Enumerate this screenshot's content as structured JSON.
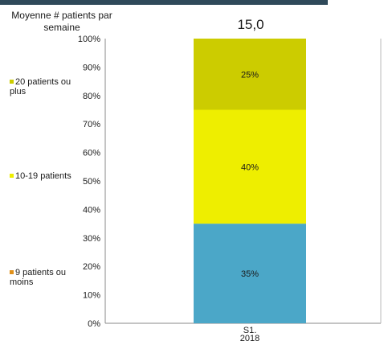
{
  "legend": {
    "title": "Moyenne # patients par semaine",
    "items": [
      {
        "label": "20 patients ou plus",
        "color": "#cccc00"
      },
      {
        "label": "10-19 patients",
        "color": "#eeee00"
      },
      {
        "label": "9 patients ou moins",
        "color": "#e0901a"
      }
    ]
  },
  "headline_value": "15,0",
  "chart_data": {
    "type": "bar",
    "stacked": true,
    "categories": [
      "S1. 2018"
    ],
    "series": [
      {
        "name": "9 patients ou moins",
        "values": [
          35
        ],
        "label": "35%",
        "color": "#4ba7c8"
      },
      {
        "name": "10-19 patients",
        "values": [
          40
        ],
        "label": "40%",
        "color": "#eeee00"
      },
      {
        "name": "20 patients ou plus",
        "values": [
          25
        ],
        "label": "25%",
        "color": "#cccc00"
      }
    ],
    "ylim": [
      0,
      100
    ],
    "y_ticks": [
      "0%",
      "10%",
      "20%",
      "30%",
      "40%",
      "50%",
      "60%",
      "70%",
      "80%",
      "90%",
      "100%"
    ],
    "x_tick_lines": [
      "S1.",
      "2018"
    ],
    "grid": false,
    "legend_position": "left"
  }
}
